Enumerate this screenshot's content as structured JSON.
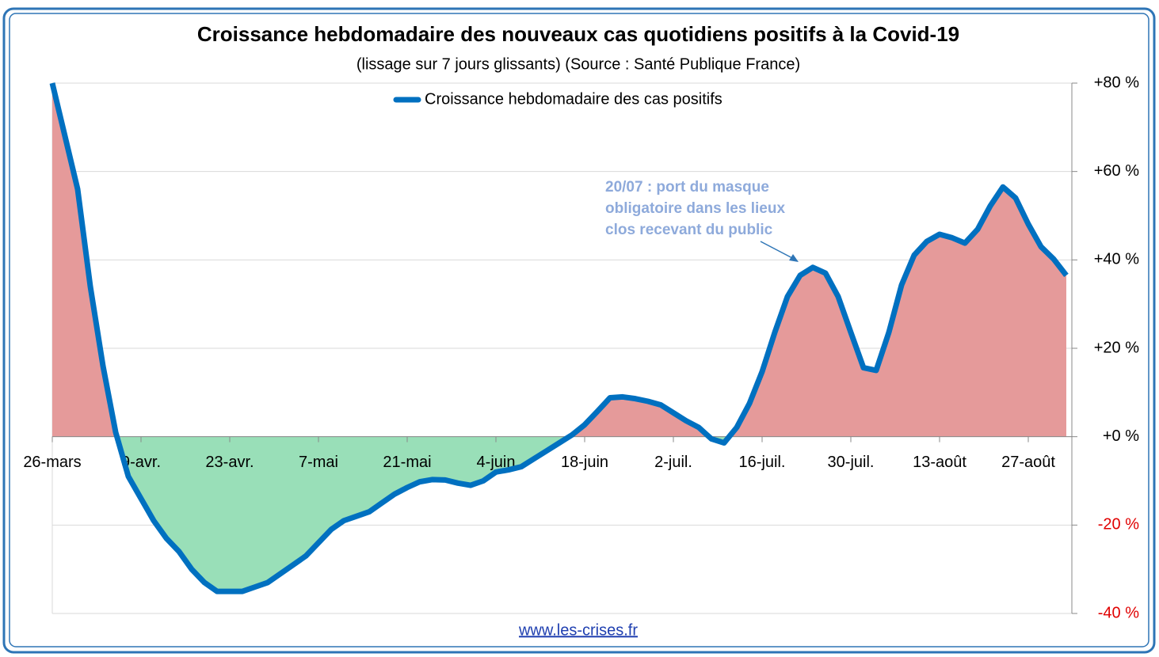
{
  "chart_data": {
    "type": "line",
    "title": "Croissance hebdomadaire des nouveaux cas quotidiens positifs à la Covid-19",
    "subtitle": "(lissage sur 7 jours glissants) (Source : Santé Publique France)",
    "categories": [
      "26-mars",
      null,
      null,
      null,
      null,
      null,
      null,
      "9-avr.",
      null,
      null,
      null,
      null,
      null,
      null,
      "23-avr.",
      null,
      null,
      null,
      null,
      null,
      null,
      "7-mai",
      null,
      null,
      null,
      null,
      null,
      null,
      "21-mai",
      null,
      null,
      null,
      null,
      null,
      null,
      "4-juin",
      null,
      null,
      null,
      null,
      null,
      null,
      "18-juin",
      null,
      null,
      null,
      null,
      null,
      null,
      "2-juil.",
      null,
      null,
      null,
      null,
      null,
      null,
      "16-juil.",
      null,
      null,
      null,
      null,
      null,
      null,
      "30-juil.",
      null,
      null,
      null,
      null,
      null,
      null,
      "13-août",
      null,
      null,
      null,
      null,
      null,
      null,
      "27-août",
      null,
      null,
      null
    ],
    "series": [
      {
        "name": "Croissance hebdomadaire des cas positifs",
        "color": "#0070c0",
        "values": [
          80,
          68,
          56,
          34,
          16,
          1,
          -9,
          -14,
          -19,
          -23,
          -26,
          -30,
          -33,
          -35,
          -35,
          -35,
          -34,
          -33,
          -31,
          -29,
          -27,
          -24,
          -21,
          -19,
          -18,
          -17,
          -15,
          -13,
          -11.5,
          -10.2,
          -9.7,
          -9.8,
          -10.5,
          -11,
          -10,
          -8,
          -7.5,
          -6.8,
          -5,
          -3.2,
          -1.4,
          0.4,
          2.7,
          5.7,
          8.8,
          9,
          8.6,
          8,
          7.2,
          5.4,
          3.6,
          2.1,
          -0.5,
          -1.4,
          2.1,
          7.5,
          14.7,
          23.6,
          31.7,
          36.5,
          38.3,
          37,
          31.7,
          23.6,
          15.6,
          15,
          23.6,
          34.3,
          41.1,
          44.2,
          45.8,
          45,
          43.8,
          46.9,
          52.2,
          56.5,
          54,
          48.1,
          43,
          40.2,
          36.5
        ]
      }
    ],
    "positive_fill": "#e59a9a",
    "negative_fill": "#99dfb8",
    "negative_tick_color": "#e00000",
    "ylim": [
      -40,
      80
    ],
    "yticks": [
      {
        "value": 80,
        "label": "+80 %"
      },
      {
        "value": 60,
        "label": "+60 %"
      },
      {
        "value": 40,
        "label": "+40 %"
      },
      {
        "value": 20,
        "label": "+20 %"
      },
      {
        "value": 0,
        "label": "+0 %"
      },
      {
        "value": -20,
        "label": "-20 %"
      },
      {
        "value": -40,
        "label": "-40 %"
      }
    ],
    "grid": true,
    "legend": "top",
    "annotation": [
      "20/07 : port du masque",
      "obligatoire dans les lieux",
      "clos recevant du public"
    ],
    "source": "www.les-crises.fr"
  }
}
